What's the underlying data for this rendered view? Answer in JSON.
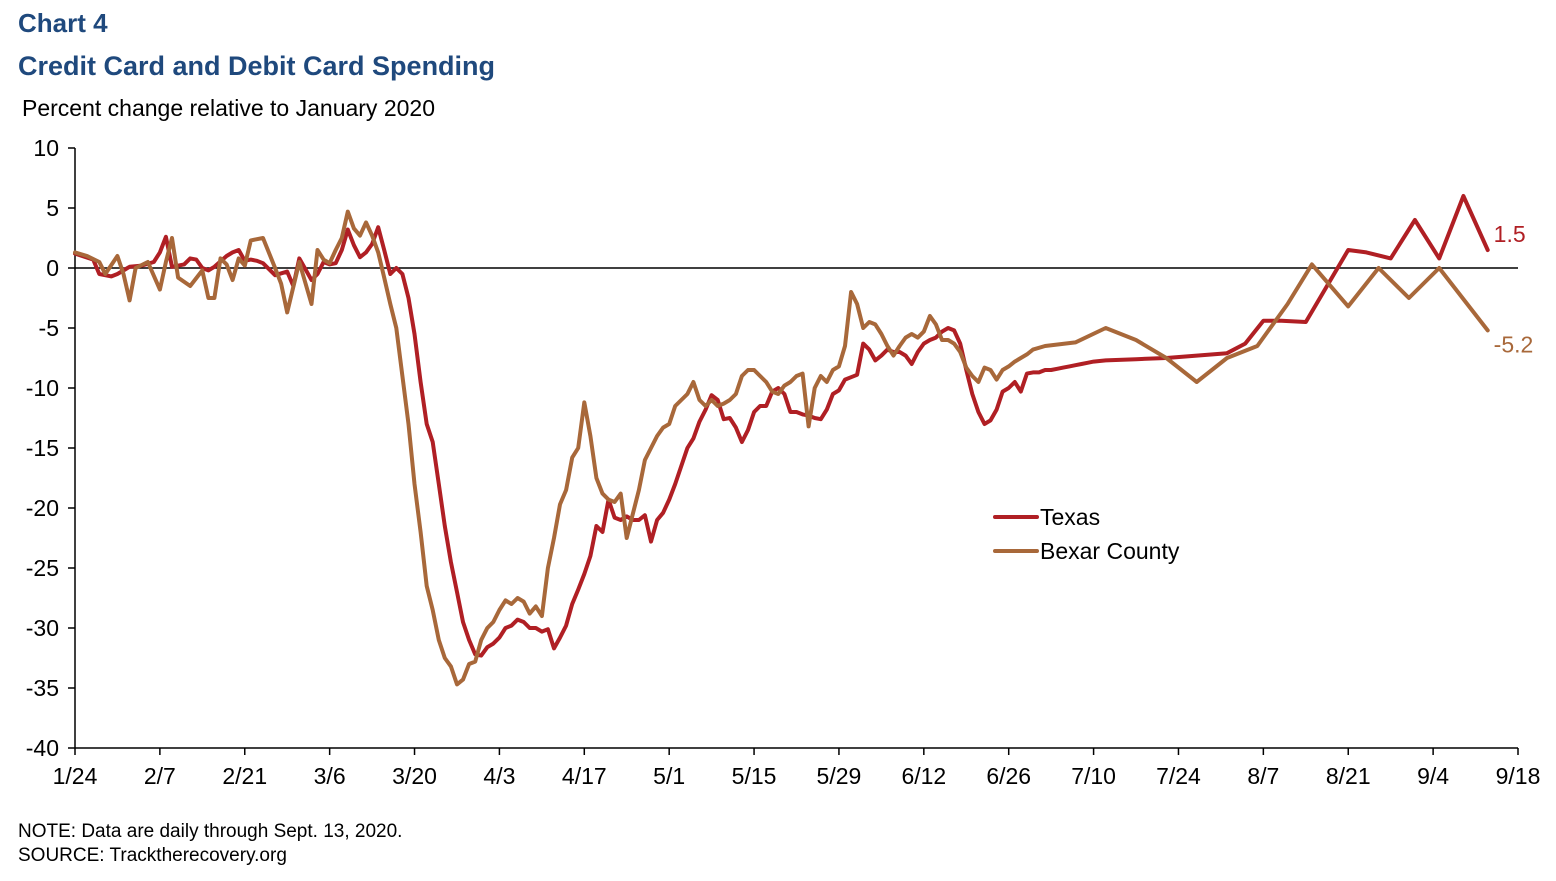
{
  "header": {
    "chart_number": "Chart 4",
    "title": "Credit Card and Debit Card Spending",
    "subtitle": "Percent change relative to January 2020"
  },
  "footer": {
    "note": "NOTE: Data are daily through Sept. 13, 2020.",
    "source": "SOURCE: Tracktherecovery.org"
  },
  "colors": {
    "texas": "#b01f24",
    "bexar": "#a8683a",
    "axis": "#000000"
  },
  "chart_data": {
    "type": "line",
    "ylabel": "Percent change relative to January 2020",
    "ylim": [
      -40,
      10
    ],
    "yticks": [
      10,
      5,
      0,
      -5,
      -10,
      -15,
      -20,
      -25,
      -30,
      -35,
      -40
    ],
    "xlim": [
      0,
      238
    ],
    "xtick_labels": [
      "1/24",
      "2/7",
      "2/21",
      "3/6",
      "3/20",
      "4/3",
      "4/17",
      "5/1",
      "5/15",
      "5/29",
      "6/12",
      "6/26",
      "7/10",
      "7/24",
      "8/7",
      "8/21",
      "9/4",
      "9/18"
    ],
    "legend": [
      "Texas",
      "Bexar County"
    ],
    "legend_position": "center-right",
    "series": [
      {
        "name": "Texas",
        "color": "#b01f24",
        "end_label": "1.5",
        "x": [
          0,
          3,
          4,
          6,
          7,
          9,
          11,
          13,
          14,
          15,
          16,
          18,
          19,
          20,
          21,
          22,
          23,
          25,
          26,
          27,
          28,
          29,
          30,
          31,
          33,
          35,
          36,
          37,
          39,
          40,
          41,
          42,
          43,
          44,
          45,
          46,
          47,
          48,
          49,
          50,
          51,
          52,
          53,
          54,
          55,
          56,
          57,
          58,
          59,
          60,
          61,
          62,
          63,
          64,
          65,
          66,
          67,
          68,
          69,
          70,
          71,
          72,
          73,
          74,
          75,
          76,
          77,
          78,
          79,
          80,
          81,
          82,
          83,
          84,
          85,
          86,
          87,
          88,
          89,
          90,
          91,
          92,
          93,
          94,
          95,
          96,
          97,
          98,
          99,
          100,
          101,
          102,
          103,
          104,
          105,
          106,
          107,
          108,
          109,
          110,
          111,
          112,
          113,
          114,
          115,
          116,
          117,
          118,
          119,
          120,
          121,
          122,
          123,
          124,
          125,
          126,
          127,
          128,
          129,
          130,
          131,
          132,
          133,
          134,
          135,
          136,
          137,
          138,
          139,
          140,
          141,
          142,
          143,
          144,
          145,
          146,
          147,
          148,
          149,
          150,
          151,
          152,
          153,
          154,
          155,
          156,
          157,
          158,
          159,
          160,
          161,
          162,
          163,
          164,
          165,
          166,
          167,
          168,
          170,
          175,
          180,
          185,
          190,
          193,
          196,
          199,
          203,
          210,
          213,
          217,
          221,
          225,
          229,
          233
        ],
        "values": [
          1.2,
          0.7,
          -0.5,
          -0.7,
          -0.5,
          0.1,
          0.2,
          0.5,
          1.3,
          2.6,
          0.1,
          0.3,
          0.8,
          0.7,
          0.0,
          -0.2,
          0.1,
          1.0,
          1.3,
          1.5,
          0.6,
          0.7,
          0.6,
          0.4,
          -0.6,
          -0.3,
          -1.5,
          0.8,
          -1.0,
          -0.5,
          0.5,
          0.3,
          0.4,
          1.5,
          3.2,
          1.9,
          0.9,
          1.3,
          2.0,
          3.4,
          1.5,
          -0.5,
          0.0,
          -0.5,
          -2.5,
          -5.5,
          -9.5,
          -13.0,
          -14.5,
          -18.0,
          -21.5,
          -24.5,
          -27.0,
          -29.5,
          -31.0,
          -32.2,
          -32.3,
          -31.6,
          -31.3,
          -30.8,
          -30.0,
          -29.8,
          -29.3,
          -29.5,
          -30.0,
          -30.0,
          -30.3,
          -30.1,
          -31.7,
          -30.8,
          -29.8,
          -28.0,
          -26.8,
          -25.5,
          -24.0,
          -21.5,
          -22.0,
          -19.3,
          -20.8,
          -21.0,
          -20.7,
          -21.0,
          -21.0,
          -20.6,
          -22.8,
          -21.0,
          -20.4,
          -19.3,
          -18.0,
          -16.5,
          -15.0,
          -14.2,
          -12.8,
          -11.8,
          -10.6,
          -11.0,
          -12.6,
          -12.5,
          -13.3,
          -14.5,
          -13.5,
          -12.0,
          -11.5,
          -11.5,
          -10.3,
          -10.0,
          -10.5,
          -12.0,
          -12.0,
          -12.2,
          -12.3,
          -12.5,
          -12.6,
          -11.8,
          -10.5,
          -10.2,
          -9.3,
          -9.1,
          -8.9,
          -6.3,
          -6.8,
          -7.7,
          -7.3,
          -6.8,
          -7.0,
          -7.0,
          -7.3,
          -8.0,
          -7.0,
          -6.3,
          -6.0,
          -5.8,
          -5.3,
          -5.0,
          -5.2,
          -6.3,
          -8.5,
          -10.5,
          -12.0,
          -13.0,
          -12.7,
          -11.8,
          -10.3,
          -10.0,
          -9.5,
          -10.3,
          -8.8,
          -8.7,
          -8.7,
          -8.5,
          -8.5,
          -8.4,
          -8.3,
          -8.2,
          -8.1,
          -8.0,
          -7.9,
          -7.8,
          -7.7,
          -7.6,
          -7.5,
          -7.3,
          -7.1,
          -6.3,
          -4.4,
          -4.4,
          -4.5,
          1.5,
          1.3,
          0.8,
          4.0,
          0.8,
          6.0,
          1.5
        ]
      },
      {
        "name": "Bexar County",
        "color": "#a8683a",
        "end_label": "-5.2",
        "x": [
          0,
          2,
          4,
          5,
          7,
          8,
          9,
          10,
          12,
          14,
          15,
          16,
          17,
          19,
          21,
          22,
          23,
          24,
          25,
          26,
          27,
          28,
          29,
          31,
          33,
          34,
          35,
          37,
          39,
          40,
          41,
          42,
          43,
          44,
          45,
          46,
          47,
          48,
          49,
          50,
          51,
          52,
          53,
          54,
          55,
          56,
          57,
          58,
          59,
          60,
          61,
          62,
          63,
          64,
          65,
          66,
          67,
          68,
          69,
          70,
          71,
          72,
          73,
          74,
          75,
          76,
          77,
          78,
          79,
          80,
          81,
          82,
          83,
          84,
          85,
          86,
          87,
          88,
          89,
          90,
          91,
          92,
          93,
          94,
          95,
          96,
          97,
          98,
          99,
          100,
          101,
          102,
          103,
          104,
          105,
          106,
          107,
          108,
          109,
          110,
          111,
          112,
          113,
          114,
          115,
          116,
          117,
          118,
          119,
          120,
          121,
          122,
          123,
          124,
          125,
          126,
          127,
          128,
          129,
          130,
          131,
          132,
          133,
          134,
          135,
          136,
          137,
          138,
          139,
          140,
          141,
          142,
          143,
          144,
          145,
          146,
          147,
          148,
          149,
          150,
          151,
          152,
          153,
          154,
          155,
          156,
          157,
          158,
          160,
          165,
          170,
          175,
          180,
          185,
          190,
          195,
          200,
          204,
          210,
          215,
          220,
          225,
          233
        ],
        "values": [
          1.3,
          1.0,
          0.5,
          -0.5,
          1.0,
          -0.5,
          -2.7,
          0.0,
          0.5,
          -1.8,
          0.5,
          2.5,
          -0.8,
          -1.5,
          -0.2,
          -2.5,
          -2.5,
          0.8,
          0.3,
          -1.0,
          0.8,
          0.2,
          2.3,
          2.5,
          0.0,
          -1.3,
          -3.7,
          0.5,
          -3.0,
          1.5,
          0.7,
          0.4,
          1.5,
          2.5,
          4.7,
          3.3,
          2.7,
          3.8,
          2.7,
          1.3,
          -0.8,
          -3.0,
          -5.0,
          -9.0,
          -13.0,
          -18.0,
          -22.0,
          -26.5,
          -28.5,
          -31.0,
          -32.5,
          -33.2,
          -34.7,
          -34.3,
          -33.0,
          -32.8,
          -31.0,
          -30.0,
          -29.5,
          -28.5,
          -27.7,
          -28.0,
          -27.5,
          -27.8,
          -28.8,
          -28.2,
          -29.0,
          -25.0,
          -22.5,
          -19.7,
          -18.5,
          -15.8,
          -15.0,
          -11.2,
          -14.0,
          -17.5,
          -18.8,
          -19.3,
          -19.5,
          -18.8,
          -22.5,
          -20.5,
          -18.5,
          -16.0,
          -15.0,
          -14.0,
          -13.3,
          -13.0,
          -11.5,
          -11.0,
          -10.5,
          -9.5,
          -11.0,
          -11.5,
          -11.0,
          -11.5,
          -11.3,
          -11.0,
          -10.5,
          -9.0,
          -8.5,
          -8.5,
          -9.0,
          -9.5,
          -10.3,
          -10.5,
          -9.8,
          -9.5,
          -9.0,
          -8.8,
          -13.2,
          -10.0,
          -9.0,
          -9.5,
          -8.5,
          -8.2,
          -6.5,
          -2.0,
          -3.0,
          -5.0,
          -4.5,
          -4.7,
          -5.5,
          -6.5,
          -7.3,
          -6.5,
          -5.8,
          -5.5,
          -5.8,
          -5.3,
          -4.0,
          -4.7,
          -6.0,
          -6.0,
          -6.3,
          -7.0,
          -8.3,
          -9.0,
          -9.5,
          -8.3,
          -8.5,
          -9.3,
          -8.5,
          -8.2,
          -7.8,
          -7.5,
          -7.2,
          -6.8,
          -6.5,
          -6.2,
          -5.0,
          -6.0,
          -7.5,
          -9.5,
          -7.5,
          -6.5,
          -3.0,
          0.3,
          -3.2,
          0.0,
          -2.5,
          0.0,
          -5.2
        ]
      }
    ]
  }
}
